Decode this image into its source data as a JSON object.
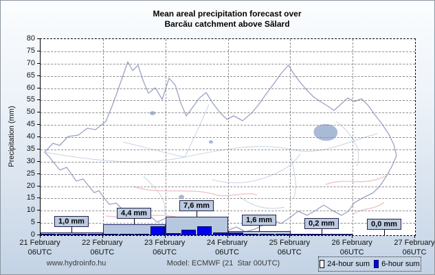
{
  "title": {
    "line1": "Mean areal precipitation forecast over",
    "line2": "Barcău catchment above Sălard"
  },
  "chart_data": {
    "type": "bar",
    "title": "Mean areal precipitation forecast over Barcău catchment above Sălard",
    "ylabel": "Precipitation (mm)",
    "ylim": [
      0,
      80
    ],
    "ytick_step": 5,
    "yticks": [
      0,
      5,
      10,
      15,
      20,
      25,
      30,
      35,
      40,
      45,
      50,
      55,
      60,
      65,
      70,
      75,
      80
    ],
    "grid": true,
    "legend_position": "bottom-right",
    "x_tick_labels": [
      {
        "date": "21 February",
        "time": "06UTC"
      },
      {
        "date": "22 February",
        "time": "06UTC"
      },
      {
        "date": "23 February",
        "time": "06UTC"
      },
      {
        "date": "24 February",
        "time": "06UTC"
      },
      {
        "date": "25 February",
        "time": "06UTC"
      },
      {
        "date": "26 February",
        "time": "06UTC"
      },
      {
        "date": "27 February",
        "time": "06UTC"
      }
    ],
    "series": [
      {
        "name": "24-hour sum",
        "color": "#b6c8de",
        "border_color": "#1c2166",
        "values": [
          1.0,
          4.4,
          7.6,
          1.6,
          0.2,
          0.0
        ],
        "value_labels": [
          "1,0 mm",
          "4,4 mm",
          "7,6 mm",
          "1,6 mm",
          "0,2 mm",
          "0,0 mm"
        ]
      },
      {
        "name": "6-hour sum",
        "color": "#0000f0",
        "border_color": "#000060",
        "values": [
          0.2,
          0.3,
          0.3,
          0.2,
          0.2,
          0.2,
          0.5,
          3.5,
          0.7,
          2.3,
          3.5,
          1.1,
          1.0,
          0.4,
          0.1,
          0.1,
          0.1,
          0.1,
          0.0,
          0.0,
          0.0,
          0.0,
          0.0,
          0.0
        ]
      }
    ]
  },
  "legend": {
    "items": [
      {
        "label": "24-hour sum",
        "color": "#ffffff"
      },
      {
        "label": "6-hour sum",
        "color": "#0000ee"
      }
    ]
  },
  "footer": {
    "website": "www.hydroinfo.hu",
    "model": "Model: ECMWF (21  Star 00UTC)"
  },
  "colors": {
    "grid": "#8c8c8c",
    "label_box_fill": "#bccbdf",
    "plot_background": "#ffffff"
  }
}
